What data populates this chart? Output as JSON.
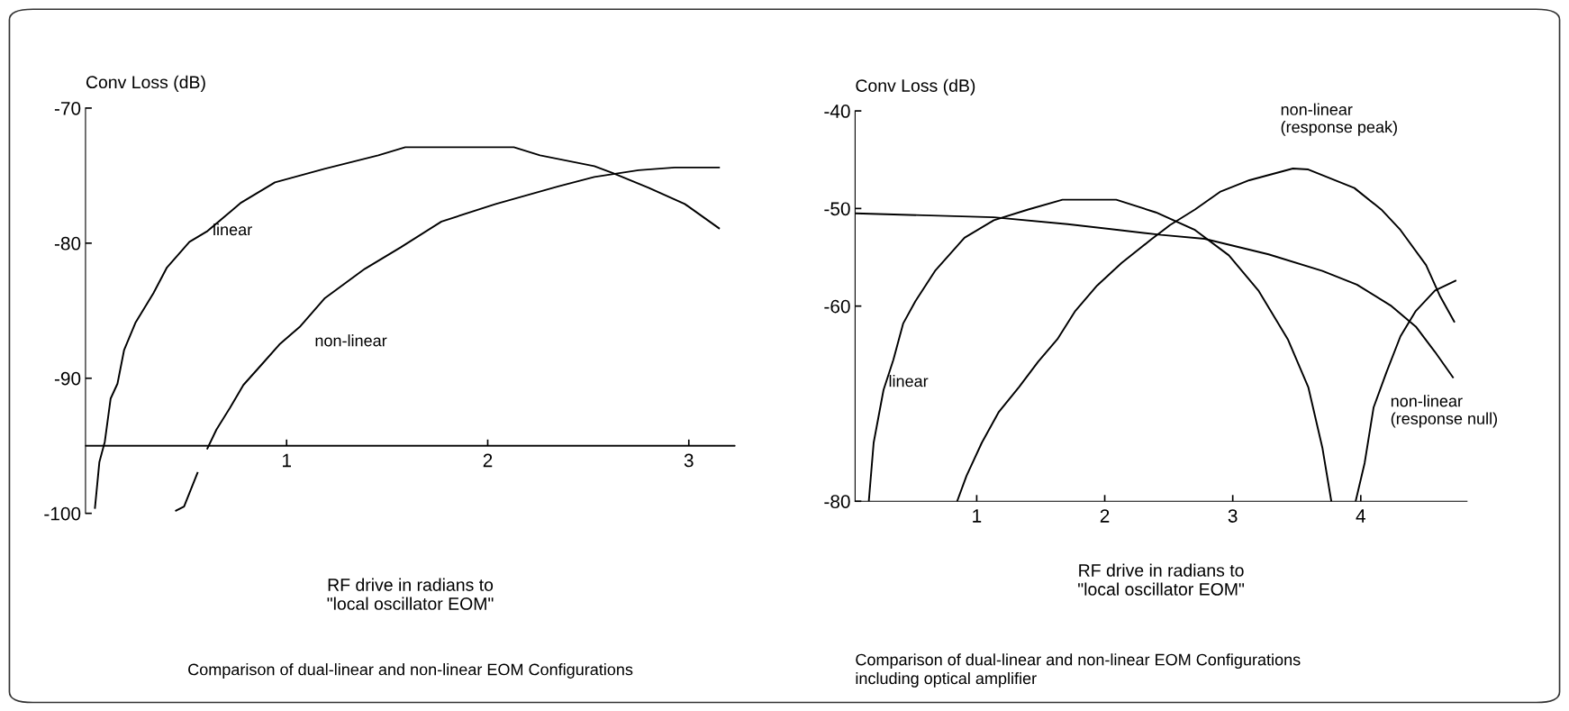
{
  "chart_data": [
    {
      "type": "line",
      "ylabel": "Conv Loss (dB)",
      "xlabel": "RF drive in radians to\n\"local oscillator EOM\"",
      "annotations": [
        "Comparison of dual-linear and non-linear EOM Configurations"
      ],
      "xlim": [
        0,
        3.23
      ],
      "ylim": [
        -100,
        -70
      ],
      "xticks": [
        1,
        2,
        3
      ],
      "yticks": [
        -70,
        -80,
        -90,
        -100
      ],
      "grid": false,
      "legend": false,
      "marker": "none",
      "line_style": "solid",
      "ref_lines": [
        {
          "axis": "y",
          "value": -95
        }
      ],
      "series": [
        {
          "name": "linear",
          "color": "#000000",
          "x": [
            0.047,
            0.069,
            0.096,
            0.125,
            0.159,
            0.192,
            0.248,
            0.338,
            0.405,
            0.517,
            0.607,
            0.774,
            0.942,
            1.188,
            1.456,
            1.59,
            2.13,
            2.26,
            2.53,
            2.62,
            2.8,
            2.98,
            3.15
          ],
          "values": [
            -99.6,
            -96.2,
            -94.7,
            -91.5,
            -90.4,
            -87.9,
            -85.9,
            -83.7,
            -81.8,
            -79.9,
            -79.1,
            -77.0,
            -75.5,
            -74.5,
            -73.5,
            -72.9,
            -72.9,
            -73.5,
            -74.3,
            -74.8,
            -75.9,
            -77.1,
            -78.9
          ]
        },
        {
          "name": "non-linear",
          "color": "#000000",
          "x": [
            0.45,
            0.49,
            0.557,
            0.58,
            0.606,
            0.651,
            0.718,
            0.785,
            0.875,
            0.964,
            1.065,
            1.188,
            1.389,
            1.568,
            1.77,
            2.04,
            2.35,
            2.53,
            2.75,
            2.93,
            3.15
          ],
          "values": [
            -99.8,
            -99.5,
            -97.0,
            null,
            -95.2,
            -93.8,
            -92.2,
            -90.5,
            -89.0,
            -87.5,
            -86.2,
            -84.1,
            -81.9,
            -80.3,
            -78.4,
            -77.1,
            -75.8,
            -75.1,
            -74.6,
            -74.4,
            -74.4
          ]
        }
      ]
    },
    {
      "type": "line",
      "ylabel": "Conv Loss (dB)",
      "xlabel": "RF drive in radians to\n\"local oscillator EOM\"",
      "annotations": [
        "Comparison of dual-linear and non-linear EOM Configurations\nincluding optical amplifier"
      ],
      "xlim": [
        0.05,
        4.83
      ],
      "ylim": [
        -80,
        -40
      ],
      "xticks": [
        1,
        2,
        3,
        4
      ],
      "yticks": [
        -40,
        -50,
        -60,
        -80
      ],
      "grid": false,
      "legend": false,
      "marker": "none",
      "line_style": "solid",
      "series": [
        {
          "name": "linear",
          "color": "#000000",
          "x": [
            0.157,
            0.195,
            0.272,
            0.349,
            0.425,
            0.521,
            0.674,
            0.904,
            1.134,
            1.402,
            1.67,
            2.09,
            2.4,
            2.705,
            2.97,
            3.2,
            3.43,
            3.59,
            3.7,
            3.77,
            3.86,
            3.96,
            4.03,
            4.1,
            4.2,
            4.31,
            4.43,
            4.58,
            4.74
          ],
          "values": [
            -80,
            -74.0,
            -68.6,
            -65.5,
            -61.8,
            -59.5,
            -56.4,
            -53.0,
            -51.2,
            -50.1,
            -49.1,
            -49.1,
            -50.4,
            -52.2,
            -54.8,
            -58.4,
            -63.4,
            -68.3,
            -74.5,
            -80,
            null,
            -80,
            -76.1,
            -70.4,
            -66.8,
            -63.1,
            -60.5,
            -58.4,
            -57.4
          ]
        },
        {
          "name": "non-linear\n(response peak)",
          "color": "#000000",
          "x": [
            0.847,
            0.92,
            1.04,
            1.17,
            1.33,
            1.48,
            1.63,
            1.77,
            1.94,
            2.13,
            2.36,
            2.51,
            2.705,
            2.9,
            3.13,
            3.47,
            3.59,
            3.95,
            4.16,
            4.31,
            4.51,
            4.62,
            4.73
          ],
          "values": [
            -80,
            -77.4,
            -74.0,
            -70.9,
            -68.3,
            -65.7,
            -63.4,
            -60.5,
            -57.9,
            -55.6,
            -53.2,
            -51.7,
            -50.1,
            -48.3,
            -47.1,
            -45.9,
            -46.0,
            -47.9,
            -50.1,
            -52.2,
            -55.8,
            -59.0,
            -61.6
          ]
        },
        {
          "name": "non-linear\n(response null)",
          "color": "#000000",
          "x": [
            0.054,
            1.134,
            1.71,
            2.44,
            2.78,
            3.28,
            3.7,
            3.97,
            4.24,
            4.43,
            4.58,
            4.72
          ],
          "values": [
            -50.5,
            -50.9,
            -51.6,
            -52.7,
            -53.1,
            -54.7,
            -56.4,
            -57.8,
            -60.0,
            -62.1,
            -64.7,
            -67.3
          ]
        }
      ]
    }
  ]
}
